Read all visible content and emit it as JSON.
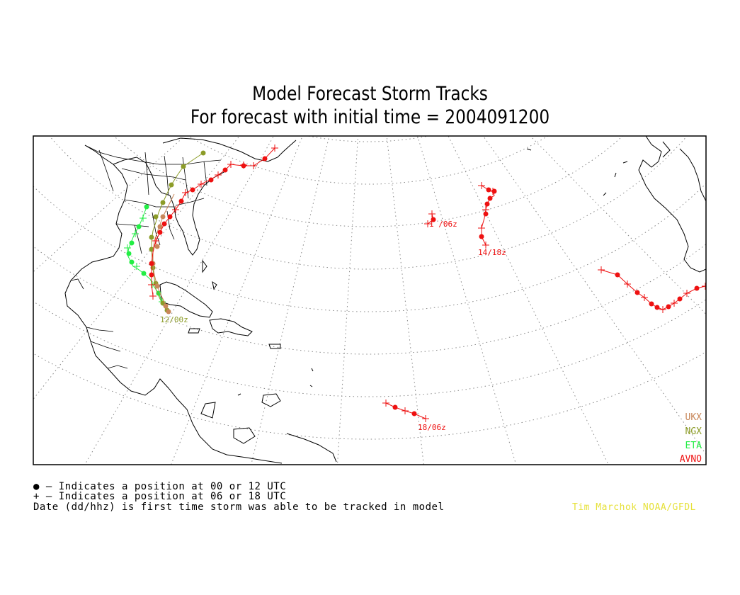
{
  "title_line1": "Model Forecast Storm Tracks",
  "title_line2": "For forecast with initial time = 2004091200",
  "legend": [
    {
      "label": "UKX",
      "color": "#c8875a"
    },
    {
      "label": "NGX",
      "color": "#8c9c28"
    },
    {
      "label": "ETA",
      "color": "#22ee44"
    },
    {
      "label": "AVNO",
      "color": "#ee1111"
    }
  ],
  "track_labels": [
    {
      "text": "12/00z",
      "color": "#8c9c28"
    },
    {
      "text": "1 /06z",
      "color": "#ee1111"
    },
    {
      "text": "14/18z",
      "color": "#ee1111"
    },
    {
      "text": "18/06z",
      "color": "#ee1111"
    }
  ],
  "footer": {
    "dot_note": "● — Indicates a position at 00 or 12 UTC",
    "plus_note": "+ — Indicates a position at 06 or 18 UTC",
    "date_note": "Date (dd/hhz) is first time storm was able to be tracked in model",
    "credit": "Tim Marchok NOAA/GFDL"
  }
}
